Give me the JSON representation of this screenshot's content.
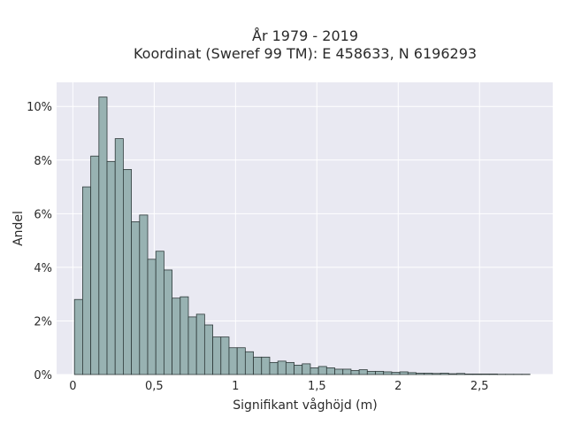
{
  "chart_data": {
    "type": "bar",
    "title": [
      "År 1979 - 2019",
      "Koordinat (Sweref 99 TM): E 458633, N 6196293"
    ],
    "xlabel": "Signifikant våghöjd (m)",
    "ylabel": "Andel",
    "xlim": [
      -0.1,
      2.95
    ],
    "ylim": [
      0,
      10.9
    ],
    "x_ticks": [
      0,
      0.5,
      1,
      1.5,
      2,
      2.5
    ],
    "x_tick_labels": [
      "0",
      "0,5",
      "1",
      "1,5",
      "2",
      "2,5"
    ],
    "y_ticks": [
      0,
      2,
      4,
      6,
      8,
      10
    ],
    "y_tick_labels": [
      "0%",
      "2%",
      "4%",
      "6%",
      "8%",
      "10%"
    ],
    "grid": true,
    "bin_start": 0.01,
    "bin_width": 0.05,
    "bin_percent": [
      2.8,
      7.0,
      8.15,
      10.35,
      7.95,
      8.8,
      7.65,
      5.7,
      5.95,
      4.3,
      4.6,
      3.9,
      2.85,
      2.9,
      2.15,
      2.25,
      1.85,
      1.4,
      1.4,
      1.0,
      1.0,
      0.85,
      0.65,
      0.65,
      0.45,
      0.5,
      0.45,
      0.35,
      0.4,
      0.25,
      0.3,
      0.25,
      0.2,
      0.2,
      0.15,
      0.18,
      0.12,
      0.12,
      0.1,
      0.08,
      0.1,
      0.07,
      0.05,
      0.05,
      0.04,
      0.05,
      0.03,
      0.04,
      0.02,
      0.02,
      0.02,
      0.02,
      0.01,
      0.01,
      0.01,
      0.01
    ],
    "colors": {
      "bar_fill": "#98b2b2",
      "bar_stroke": "#2f3a3a",
      "plot_bg": "#e9e9f2",
      "grid": "#ffffff"
    }
  }
}
